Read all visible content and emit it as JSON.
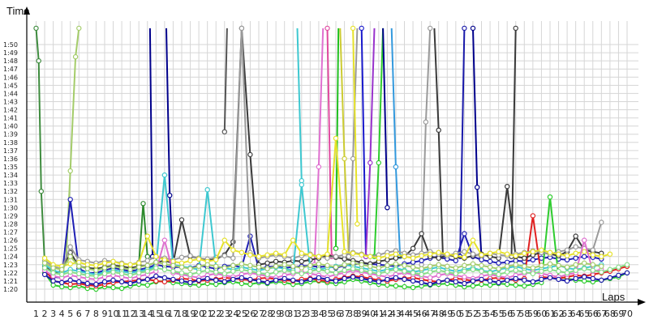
{
  "chart_data": {
    "type": "line",
    "title": "",
    "xlabel": "Laps",
    "ylabel": "Time",
    "x_ticks": [
      1,
      2,
      3,
      4,
      5,
      6,
      7,
      8,
      9,
      10,
      11,
      12,
      13,
      14,
      15,
      16,
      17,
      18,
      19,
      20,
      21,
      22,
      23,
      24,
      25,
      26,
      27,
      28,
      29,
      30,
      31,
      32,
      33,
      34,
      35,
      36,
      37,
      38,
      39,
      40,
      41,
      42,
      43,
      44,
      45,
      46,
      47,
      48,
      49,
      50,
      51,
      52,
      53,
      54,
      55,
      56,
      57,
      58,
      59,
      60,
      61,
      62,
      63,
      64,
      65,
      66,
      67,
      68,
      69,
      70
    ],
    "y_tick_labels": [
      "1:20",
      "1:21",
      "1:22",
      "1:23",
      "1:24",
      "1:25",
      "1:26",
      "1:27",
      "1:28",
      "1:29",
      "1:30",
      "1:31",
      "1:32",
      "1:33",
      "1:34",
      "1:35",
      "1:36",
      "1:37",
      "1:38",
      "1:39",
      "1:40",
      "1:41",
      "1:42",
      "1:43",
      "1:44",
      "1:45",
      "1:46",
      "1:47",
      "1:48",
      "1:49",
      "1:50"
    ],
    "ylim_seconds": [
      80,
      110
    ],
    "xlim": [
      1,
      70
    ],
    "grid": true,
    "legend": "none",
    "series": [
      {
        "color": "#1f1fb4",
        "values": [
          null,
          82.0,
          81.5,
          81.4,
          91.0,
          82.5,
          82.0,
          82.0,
          82.3,
          82.6,
          82.4,
          82.2,
          82.4,
          82.6,
          83.0,
          82.8,
          82.7,
          82.7,
          82.6,
          82.9,
          82.7,
          82.5,
          82.8,
          82.9,
          82.7,
          86.5,
          82.5,
          82.7,
          82.8,
          82.6,
          82.7,
          82.8,
          82.9,
          82.7,
          82.8,
          82.6,
          82.9,
          83.0,
          83.2,
          83.1,
          83.0,
          82.9,
          82.8,
          83.1,
          83.3,
          83.5,
          83.8,
          84.0,
          83.7,
          83.5,
          86.8,
          84.0,
          83.6,
          83.4,
          83.2,
          83.3,
          83.5,
          83.4,
          83.6,
          83.8,
          83.9,
          83.7,
          83.6,
          83.8,
          84.0,
          83.9,
          83.7,
          null,
          null,
          null
        ]
      },
      {
        "color": "#2ecc2e",
        "values": [
          null,
          82.0,
          80.5,
          80.3,
          80.2,
          80.4,
          80.1,
          80.0,
          80.3,
          80.2,
          80.1,
          80.4,
          80.6,
          80.5,
          80.9,
          81.0,
          80.8,
          80.7,
          80.6,
          80.5,
          80.7,
          80.6,
          80.8,
          80.9,
          80.7,
          80.6,
          80.8,
          80.7,
          80.9,
          80.8,
          80.6,
          80.7,
          80.9,
          81.0,
          80.8,
          80.7,
          80.9,
          81.2,
          81.0,
          80.8,
          80.6,
          80.5,
          80.4,
          80.3,
          80.2,
          80.4,
          80.5,
          80.6,
          80.7,
          80.5,
          80.3,
          80.4,
          80.6,
          80.5,
          80.7,
          80.6,
          80.5,
          80.4,
          80.6,
          80.8,
          91.3,
          81.5,
          81.3,
          81.1,
          81.0,
          80.9,
          81.1,
          81.3,
          81.5,
          82.0
        ]
      },
      {
        "color": "#e02020",
        "values": [
          null,
          82.5,
          81.0,
          80.8,
          80.6,
          80.7,
          80.5,
          80.4,
          80.6,
          80.8,
          80.9,
          81.0,
          81.1,
          81.2,
          81.0,
          80.9,
          81.1,
          81.3,
          81.2,
          81.0,
          81.1,
          81.2,
          81.4,
          81.3,
          81.2,
          81.1,
          81.3,
          81.4,
          81.2,
          81.1,
          81.0,
          81.2,
          81.3,
          81.1,
          81.0,
          81.2,
          81.4,
          81.6,
          81.5,
          81.3,
          81.1,
          81.0,
          81.2,
          81.3,
          81.4,
          81.2,
          81.0,
          80.9,
          81.1,
          81.3,
          81.2,
          81.0,
          81.1,
          81.3,
          81.4,
          81.2,
          81.1,
          81.3,
          89.0,
          81.5,
          81.4,
          81.3,
          81.5,
          81.7,
          81.6,
          81.8,
          82.0,
          82.2,
          82.5,
          82.8
        ]
      },
      {
        "color": "#3a3a3a",
        "values": [
          null,
          82.8,
          82.0,
          82.2,
          84.5,
          82.8,
          82.6,
          82.5,
          82.7,
          82.9,
          82.8,
          82.6,
          82.8,
          82.9,
          83.3,
          83.5,
          83.2,
          88.5,
          84.0,
          83.8,
          83.5,
          83.7,
          84.2,
          85.8,
          112.0,
          96.5,
          83.0,
          83.2,
          83.4,
          83.3,
          83.5,
          83.4,
          83.6,
          83.8,
          84.2,
          83.9,
          83.7,
          83.5,
          83.3,
          83.1,
          83.4,
          83.6,
          83.8,
          84.0,
          85.0,
          86.8,
          84.0,
          83.8,
          84.2,
          84.0,
          83.8,
          84.1,
          84.3,
          84.0,
          83.8,
          92.6,
          84.0,
          83.8,
          84.2,
          84.5,
          84.3,
          84.1,
          84.6,
          86.5,
          84.8,
          84.6,
          84.4,
          null,
          null,
          null
        ]
      },
      {
        "color": "#9a9a9a",
        "values": [
          null,
          83.5,
          82.8,
          82.5,
          85.2,
          83.6,
          83.4,
          83.2,
          83.5,
          83.4,
          83.2,
          83.0,
          83.3,
          83.5,
          84.0,
          83.8,
          83.6,
          83.9,
          84.1,
          83.8,
          83.7,
          83.9,
          84.1,
          83.8,
          112.0,
          84.5,
          83.8,
          84.0,
          84.2,
          84.0,
          83.8,
          84.1,
          84.3,
          84.0,
          83.8,
          84.0,
          84.2,
          84.5,
          84.3,
          84.0,
          84.2,
          84.5,
          84.7,
          84.4,
          84.2,
          84.4,
          84.6,
          84.3,
          84.1,
          84.4,
          84.6,
          84.3,
          84.1,
          84.4,
          84.2,
          84.1,
          84.3,
          84.5,
          84.7,
          84.5,
          84.3,
          84.6,
          84.8,
          85.2,
          85.0,
          84.8,
          88.2,
          null,
          null,
          null
        ]
      },
      {
        "color": "#3ec8d0",
        "values": [
          null,
          83.0,
          82.3,
          82.0,
          82.4,
          82.2,
          82.0,
          81.8,
          82.1,
          82.3,
          82.2,
          82.0,
          82.2,
          82.4,
          82.8,
          94.0,
          83.0,
          82.8,
          82.6,
          82.4,
          92.2,
          82.8,
          82.6,
          82.4,
          82.7,
          82.5,
          82.3,
          82.5,
          82.7,
          82.5,
          82.3,
          92.8,
          82.6,
          82.4,
          82.6,
          82.8,
          83.0,
          82.8,
          82.6,
          82.4,
          82.2,
          82.4,
          82.6,
          82.3,
          82.1,
          82.3,
          82.5,
          82.7,
          82.4,
          82.2,
          82.4,
          82.6,
          82.3,
          82.1,
          82.4,
          82.6,
          82.8,
          82.5,
          82.3,
          82.5,
          82.7,
          82.9,
          82.6,
          82.4,
          82.6,
          82.8,
          83.0,
          null,
          null,
          null
        ]
      },
      {
        "color": "#e6e22a",
        "values": [
          null,
          83.8,
          83.0,
          82.8,
          83.1,
          83.3,
          83.0,
          82.9,
          83.2,
          83.4,
          83.1,
          83.0,
          83.2,
          86.5,
          84.0,
          83.6,
          83.4,
          83.2,
          83.5,
          83.7,
          83.4,
          83.6,
          86.0,
          84.8,
          84.5,
          84.2,
          84.0,
          84.2,
          84.4,
          84.2,
          86.0,
          84.4,
          84.2,
          84.0,
          84.3,
          98.5,
          84.6,
          84.4,
          84.2,
          84.0,
          83.8,
          84.1,
          84.3,
          84.0,
          83.8,
          84.1,
          84.3,
          84.5,
          84.3,
          84.1,
          83.9,
          86.0,
          84.2,
          84.4,
          84.6,
          84.3,
          84.1,
          84.4,
          84.6,
          84.8,
          84.5,
          84.3,
          84.1,
          84.4,
          84.6,
          84.2,
          84.0,
          84.3,
          null,
          null
        ]
      },
      {
        "color": "#e070d0",
        "values": [
          null,
          82.3,
          81.6,
          81.4,
          81.7,
          81.5,
          81.3,
          81.2,
          81.5,
          81.7,
          81.5,
          81.3,
          81.6,
          81.8,
          82.2,
          86.0,
          82.0,
          81.8,
          81.6,
          81.4,
          81.7,
          81.9,
          81.7,
          81.5,
          81.8,
          82.0,
          81.8,
          81.6,
          81.4,
          81.7,
          81.9,
          82.1,
          81.9,
          81.7,
          81.5,
          81.8,
          82.0,
          82.3,
          82.1,
          81.9,
          81.7,
          81.5,
          81.8,
          82.0,
          81.8,
          81.6,
          81.4,
          81.7,
          81.9,
          81.7,
          81.5,
          81.3,
          81.6,
          81.8,
          81.6,
          81.4,
          81.7,
          81.9,
          82.1,
          81.9,
          81.7,
          81.5,
          81.8,
          82.0,
          86.0,
          82.2,
          82.4,
          null,
          null,
          null
        ]
      },
      {
        "color": "#1a1aaa",
        "values": [
          null,
          81.8,
          81.0,
          80.8,
          81.1,
          80.9,
          80.7,
          80.6,
          80.9,
          81.1,
          80.9,
          80.7,
          81.0,
          81.2,
          81.6,
          81.4,
          81.2,
          81.0,
          80.8,
          81.1,
          81.3,
          81.1,
          80.9,
          81.2,
          81.4,
          81.2,
          81.0,
          80.8,
          81.1,
          81.3,
          81.1,
          80.9,
          81.2,
          81.4,
          81.2,
          81.0,
          81.3,
          81.5,
          81.3,
          81.1,
          80.9,
          81.2,
          81.4,
          81.2,
          81.0,
          80.8,
          80.6,
          80.9,
          81.1,
          80.9,
          80.7,
          81.0,
          81.2,
          81.0,
          80.8,
          81.1,
          81.3,
          81.1,
          80.9,
          81.2,
          81.4,
          81.2,
          81.0,
          81.3,
          81.5,
          81.3,
          81.1,
          81.4,
          81.7,
          82.0
        ]
      },
      {
        "color": "#88dd88",
        "values": [
          null,
          82.6,
          82.0,
          81.8,
          82.1,
          81.9,
          81.7,
          81.6,
          81.9,
          82.1,
          81.9,
          81.7,
          82.0,
          82.2,
          82.6,
          82.4,
          82.2,
          82.0,
          81.8,
          82.1,
          82.3,
          82.1,
          81.9,
          82.2,
          82.4,
          82.2,
          82.0,
          81.8,
          82.1,
          82.3,
          82.1,
          81.9,
          82.2,
          82.4,
          82.2,
          82.0,
          82.3,
          82.5,
          82.3,
          82.1,
          81.9,
          82.2,
          82.4,
          82.2,
          82.0,
          81.8,
          82.1,
          82.3,
          82.1,
          81.9,
          82.2,
          82.4,
          82.2,
          82.0,
          81.8,
          82.1,
          82.3,
          82.1,
          81.9,
          82.2,
          82.4,
          82.2,
          82.0,
          82.3,
          82.5,
          82.3,
          82.1,
          82.4,
          82.7,
          83.0
        ]
      },
      {
        "color": "#a4cc6a",
        "values": [
          null,
          83.2,
          82.6,
          82.4,
          84.0,
          82.8,
          82.5,
          82.3,
          82.6,
          82.8,
          82.6,
          82.4,
          82.7,
          82.9,
          83.3,
          83.1,
          82.9,
          82.7,
          82.5,
          82.8,
          83.0,
          82.8,
          82.6,
          82.9,
          83.1,
          82.9,
          82.7,
          82.5,
          82.8,
          83.0,
          82.8,
          82.6,
          82.9,
          83.1,
          82.9,
          82.7,
          83.0,
          83.2,
          83.0,
          82.8,
          82.6,
          82.9,
          83.1,
          82.9,
          82.7,
          82.5,
          82.8,
          83.0,
          82.8,
          82.6,
          82.9,
          83.1,
          82.9,
          82.7,
          82.5,
          82.8,
          83.0,
          82.8,
          82.6,
          82.9,
          83.1,
          82.9,
          82.7,
          83.0,
          83.2,
          83.0,
          82.8,
          null,
          null,
          null
        ]
      }
    ],
    "spikes": [
      {
        "color": "#3f8c3f",
        "points": [
          [
            1,
            112.0
          ],
          [
            1.3,
            108.0
          ],
          [
            1.6,
            92.0
          ],
          [
            2,
            83.2
          ]
        ]
      },
      {
        "color": "#a4cc6a",
        "points": [
          [
            4.5,
            83.5
          ],
          [
            5,
            94.5
          ],
          [
            5.6,
            108.5
          ],
          [
            6,
            112.0
          ]
        ]
      },
      {
        "color": "#2e8b2e",
        "points": [
          [
            13,
            83.0
          ],
          [
            13.5,
            90.5
          ],
          [
            14,
            84.0
          ]
        ]
      },
      {
        "color": "#00008b",
        "points": [
          [
            14.3,
            112.0
          ],
          [
            14.6,
            84.0
          ]
        ]
      },
      {
        "color": "#00008b",
        "points": [
          [
            16.2,
            112.0
          ],
          [
            16.6,
            91.5
          ],
          [
            17,
            83.0
          ]
        ]
      },
      {
        "color": "#555555",
        "points": [
          [
            23,
            99.3
          ],
          [
            23.3,
            112.0
          ]
        ]
      },
      {
        "color": "#3ec8d0",
        "points": [
          [
            31.5,
            112.0
          ],
          [
            32,
            93.3
          ]
        ]
      },
      {
        "color": "#e070d0",
        "points": [
          [
            33.5,
            83.0
          ],
          [
            34,
            95.0
          ],
          [
            34.5,
            112.0
          ]
        ]
      },
      {
        "color": "#e04aa0",
        "points": [
          [
            35,
            112.0
          ],
          [
            35.5,
            84.0
          ]
        ]
      },
      {
        "color": "#20c020",
        "points": [
          [
            36,
            85.0
          ],
          [
            36.3,
            112.0
          ]
        ]
      },
      {
        "color": "#cccc33",
        "points": [
          [
            36.5,
            112.0
          ],
          [
            37,
            96.0
          ],
          [
            37.5,
            84.0
          ]
        ]
      },
      {
        "color": "#9a9a9a",
        "points": [
          [
            37.5,
            84.0
          ],
          [
            38,
            96.0
          ],
          [
            38.5,
            112.0
          ]
        ]
      },
      {
        "color": "#e6e22a",
        "points": [
          [
            38,
            112.0
          ],
          [
            38.5,
            88.0
          ]
        ]
      },
      {
        "color": "#1a1acc",
        "points": [
          [
            39,
            112.0
          ],
          [
            39.5,
            84.0
          ]
        ]
      },
      {
        "color": "#9933cc",
        "points": [
          [
            39.5,
            84.0
          ],
          [
            40,
            95.5
          ],
          [
            40.5,
            112.0
          ]
        ]
      },
      {
        "color": "#2ecc2e",
        "points": [
          [
            40.5,
            84.0
          ],
          [
            41,
            95.5
          ],
          [
            41.5,
            112.0
          ]
        ]
      },
      {
        "color": "#00008b",
        "points": [
          [
            41.5,
            112.0
          ],
          [
            42,
            90.0
          ]
        ]
      },
      {
        "color": "#3399dd",
        "points": [
          [
            42.5,
            112.0
          ],
          [
            43,
            95.0
          ],
          [
            43.5,
            84.0
          ]
        ]
      },
      {
        "color": "#9a9a9a",
        "points": [
          [
            46,
            83.0
          ],
          [
            46.5,
            100.5
          ],
          [
            47,
            112.0
          ]
        ]
      },
      {
        "color": "#3a3a3a",
        "points": [
          [
            47.5,
            112.0
          ],
          [
            48,
            99.5
          ],
          [
            48.5,
            84.0
          ]
        ]
      },
      {
        "color": "#1a1aaa",
        "points": [
          [
            50.5,
            84.0
          ],
          [
            51,
            112.0
          ]
        ]
      },
      {
        "color": "#00008b",
        "points": [
          [
            52,
            112.0
          ],
          [
            52.5,
            92.5
          ],
          [
            53,
            84.0
          ]
        ]
      },
      {
        "color": "#3a3a3a",
        "points": [
          [
            56.5,
            84.0
          ],
          [
            57,
            112.0
          ]
        ]
      }
    ]
  }
}
